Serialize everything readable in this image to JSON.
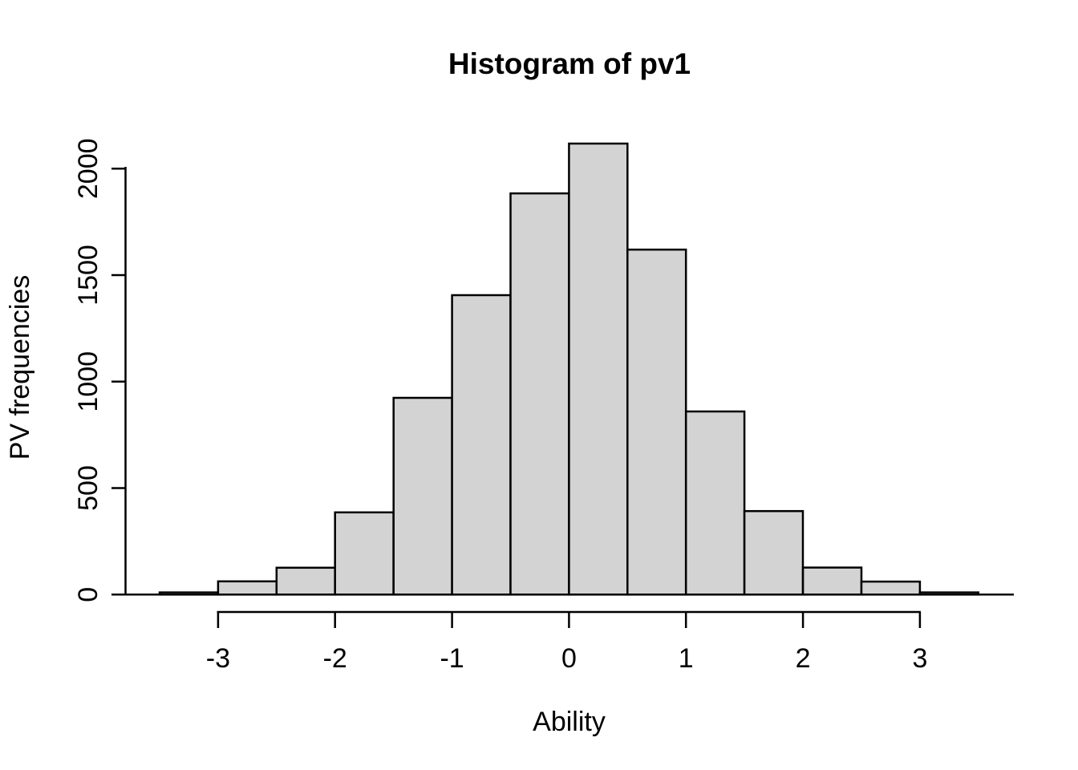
{
  "page": {
    "background_color": "#ffffff"
  },
  "chart_data": {
    "type": "bar",
    "subtype": "histogram",
    "title": "Histogram of pv1",
    "xlabel": "Ability",
    "ylabel": "PV frequencies",
    "bin_start": -3.5,
    "bin_width": 0.5,
    "bin_edges": [
      -3.5,
      -3.0,
      -2.5,
      -2.0,
      -1.5,
      -1.0,
      -0.5,
      0.0,
      0.5,
      1.0,
      1.5,
      2.0,
      2.5,
      3.0,
      3.5
    ],
    "counts": [
      10,
      62,
      126,
      386,
      924,
      1406,
      1884,
      2118,
      1620,
      860,
      392,
      127,
      61,
      10
    ],
    "x_ticks": [
      -3,
      -2,
      -1,
      0,
      1,
      2,
      3
    ],
    "y_ticks": [
      0,
      500,
      1000,
      1500,
      2000
    ],
    "xlim": [
      -3.78,
      3.8
    ],
    "ylim": [
      0,
      2118
    ],
    "grid": false,
    "legend": null,
    "bar_fill_color": "#d3d3d3",
    "bar_stroke_color": "#000000",
    "axis_color": "#000000",
    "text_color": "#000000"
  }
}
